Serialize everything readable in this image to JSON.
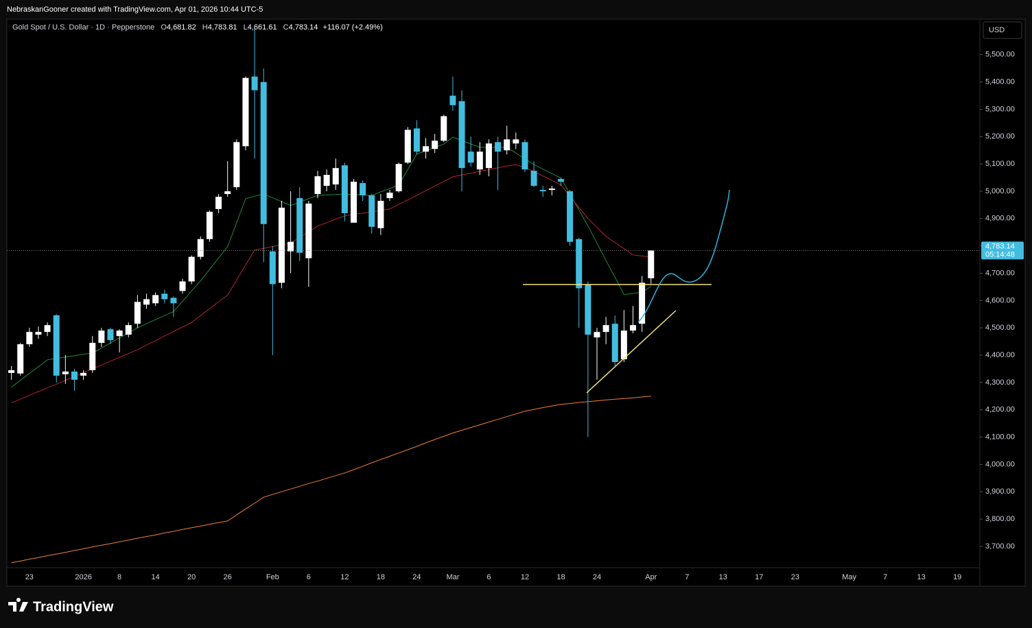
{
  "header": "NebraskanGooner created with TradingView.com, Apr 01, 2026 10:44 UTC-5",
  "footer_logo": "TradingView",
  "chart_data": {
    "type": "candlestick",
    "legend": {
      "symbol": "Gold Spot / U.S. Dollar · 1D · Pepperstone",
      "o_label": "O",
      "o": "4,681.82",
      "h_label": "H",
      "h": "4,783.81",
      "l_label": "L",
      "l": "4,661.61",
      "c_label": "C",
      "c": "4,783.14",
      "change": "+116.07 (+2.49%)"
    },
    "currency": "USD",
    "price_label": "4,783.14",
    "countdown": "05:14:48",
    "categories": [
      null,
      null,
      "23",
      null,
      null,
      null,
      null,
      null,
      "2026",
      null,
      null,
      null,
      "8",
      null,
      null,
      null,
      "14",
      null,
      null,
      null,
      "20",
      null,
      null,
      null,
      "26",
      null,
      null,
      null,
      null,
      "Feb",
      null,
      null,
      null,
      "6",
      null,
      null,
      null,
      "12",
      null,
      null,
      null,
      "18",
      null,
      null,
      null,
      "24",
      null,
      null,
      null,
      "Mar",
      null,
      null,
      null,
      "6",
      null,
      null,
      null,
      "12",
      null,
      null,
      null,
      "18",
      null,
      null,
      null,
      "24",
      null,
      null,
      null,
      null,
      null,
      "Apr",
      null,
      null,
      null,
      "7",
      null,
      null,
      null,
      "13",
      null,
      null,
      null,
      "17",
      null,
      null,
      null,
      "23",
      null,
      null,
      null,
      null,
      null,
      "May",
      null,
      null,
      null,
      "7",
      null,
      null,
      null,
      "13",
      null,
      null,
      null,
      "19",
      null,
      null
    ],
    "open": [
      4335,
      4333,
      4440,
      4475,
      4485,
      4546,
      4330,
      4340,
      4325,
      4345,
      4445,
      4495,
      4470,
      4475,
      4515,
      4585,
      4590,
      4625,
      4610,
      4635,
      4670,
      4760,
      4825,
      4935,
      4990,
      5015,
      5165,
      5420,
      5400,
      4780,
      4665,
      4780,
      4975,
      4755,
      4990,
      5020,
      5025,
      5095,
      4885,
      5030,
      4985,
      4865,
      4975,
      5000,
      5105,
      5230,
      5145,
      5155,
      5185,
      5350,
      5330,
      5145,
      5080,
      5085,
      5180,
      5150,
      5175,
      5180,
      5075,
      5005,
      5005,
      5045,
      5000,
      4825,
      4660,
      4465,
      4485,
      4515,
      4385,
      4490,
      4515,
      4681.82,
      null,
      null,
      null,
      null,
      null,
      null,
      null,
      null,
      null,
      null,
      null,
      null,
      null,
      null,
      null,
      null,
      null,
      null,
      null,
      null,
      null,
      null,
      null,
      null,
      null,
      null,
      null,
      null,
      null,
      null,
      null,
      null,
      null,
      null,
      null,
      null
    ],
    "high": [
      4360,
      4445,
      4500,
      4505,
      4520,
      4550,
      4400,
      4350,
      4345,
      4470,
      4500,
      4500,
      4495,
      4520,
      4620,
      4625,
      4630,
      4640,
      4615,
      4680,
      4765,
      4835,
      4930,
      4990,
      5110,
      5190,
      5420,
      5595,
      5450,
      4800,
      4965,
      5000,
      5015,
      4965,
      5075,
      5080,
      5120,
      5105,
      5045,
      5040,
      4990,
      4990,
      5005,
      5105,
      5235,
      5260,
      5195,
      5210,
      5280,
      5420,
      5370,
      5200,
      5180,
      5190,
      5200,
      5240,
      5215,
      5190,
      5110,
      5020,
      5020,
      5050,
      5005,
      4830,
      4670,
      4500,
      4540,
      4545,
      4565,
      4580,
      4690,
      4783.81,
      null,
      null,
      null,
      null,
      null,
      null,
      null,
      null,
      null,
      null,
      null,
      null,
      null,
      null,
      null,
      null,
      null,
      null,
      null,
      null,
      null,
      null,
      null,
      null,
      null,
      null,
      null,
      null,
      null,
      null,
      null,
      null,
      null,
      null,
      null,
      null
    ],
    "low": [
      4310,
      4325,
      4430,
      4460,
      4470,
      4300,
      4295,
      4270,
      4310,
      4335,
      4430,
      4440,
      4410,
      4465,
      4500,
      4570,
      4580,
      4590,
      4540,
      4625,
      4660,
      4750,
      4815,
      4920,
      4980,
      5005,
      5150,
      5120,
      4740,
      4400,
      4645,
      4700,
      4745,
      4650,
      4975,
      5000,
      5005,
      4890,
      4885,
      4965,
      4845,
      4840,
      4965,
      4995,
      5100,
      5135,
      5120,
      5140,
      5180,
      5295,
      5000,
      5090,
      5060,
      5055,
      5005,
      5135,
      5155,
      5070,
      5015,
      4980,
      4985,
      5020,
      4800,
      4500,
      4100,
      4310,
      4440,
      4360,
      4375,
      4480,
      4485,
      4661.61,
      null,
      null,
      null,
      null,
      null,
      null,
      null,
      null,
      null,
      null,
      null,
      null,
      null,
      null,
      null,
      null,
      null,
      null,
      null,
      null,
      null,
      null,
      null,
      null,
      null,
      null,
      null,
      null,
      null,
      null,
      null,
      null,
      null,
      null,
      null,
      null
    ],
    "close": [
      4345,
      4440,
      4485,
      4485,
      4510,
      4325,
      4340,
      4310,
      4335,
      4445,
      4490,
      4455,
      4490,
      4510,
      4595,
      4605,
      4620,
      4605,
      4590,
      4670,
      4760,
      4825,
      4925,
      4980,
      5000,
      5180,
      5415,
      5370,
      4880,
      4660,
      4940,
      4815,
      4775,
      4955,
      5055,
      5060,
      5085,
      4920,
      5035,
      4985,
      4870,
      4965,
      4995,
      5100,
      5225,
      5145,
      5165,
      5185,
      5275,
      5315,
      5085,
      5105,
      5145,
      5175,
      5145,
      5190,
      5190,
      5080,
      5020,
      5000,
      5010,
      5035,
      4815,
      4645,
      4475,
      4485,
      4510,
      4375,
      4490,
      4510,
      4665,
      4783.14,
      null,
      null,
      null,
      null,
      null,
      null,
      null,
      null,
      null,
      null,
      null,
      null,
      null,
      null,
      null,
      null,
      null,
      null,
      null,
      null,
      null,
      null,
      null,
      null,
      null,
      null,
      null,
      null,
      null,
      null,
      null,
      null,
      null,
      null,
      null,
      null
    ],
    "up_color": "#ffffff",
    "down_color": "#42bde0",
    "lines": [
      {
        "color": "#1f8a3a",
        "values": [
          4283,
          4308,
          4333,
          4358,
          4383,
          4388,
          4393,
          4398,
          4403,
          4408,
          4426,
          4445,
          4463,
          4482,
          4500,
          4515,
          4530,
          4545,
          4560,
          4597,
          4635,
          4672,
          4714,
          4755,
          4797,
          4885,
          4973,
          4982,
          4990,
          4976,
          4962,
          4948,
          4960,
          4973,
          4985,
          4987,
          4988,
          4990,
          4988,
          4987,
          4985,
          4998,
          5010,
          5023,
          5080,
          5136,
          5148,
          5161,
          5173,
          5198,
          5186,
          5173,
          5161,
          5161,
          5161,
          5161,
          5140,
          5119,
          5098,
          5081,
          5065,
          5048,
          4990,
          4932,
          4873,
          4810,
          4747,
          4685,
          4622,
          4626,
          4630,
          4652,
          null,
          null,
          null,
          null,
          null,
          null,
          null,
          null,
          null,
          null,
          null,
          null,
          null,
          null,
          null,
          null,
          null,
          null,
          null,
          null,
          null,
          null,
          null,
          null,
          null,
          null,
          null,
          null,
          null,
          null,
          null,
          null,
          null,
          null,
          null,
          null
        ]
      },
      {
        "color": "#b3262b",
        "values": [
          4225,
          4239,
          4253,
          4267,
          4280,
          4294,
          4308,
          4322,
          4336,
          4350,
          4364,
          4378,
          4392,
          4406,
          4420,
          4437,
          4453,
          4470,
          4487,
          4503,
          4520,
          4545,
          4570,
          4595,
          4620,
          4675,
          4730,
          4785,
          4791,
          4798,
          4804,
          4810,
          4831,
          4852,
          4873,
          4885,
          4898,
          4910,
          4915,
          4920,
          4925,
          4930,
          4935,
          4952,
          4968,
          4985,
          5002,
          5019,
          5036,
          5053,
          5060,
          5066,
          5073,
          5079,
          5086,
          5092,
          5098,
          5086,
          5073,
          5056,
          5040,
          5023,
          4982,
          4941,
          4900,
          4868,
          4835,
          4812,
          4790,
          4767,
          4763,
          4760,
          null,
          null,
          null,
          null,
          null,
          null,
          null,
          null,
          null,
          null,
          null,
          null,
          null,
          null,
          null,
          null,
          null,
          null,
          null,
          null,
          null,
          null,
          null,
          null,
          null,
          null,
          null,
          null,
          null,
          null,
          null,
          null,
          null,
          null,
          null,
          null
        ]
      },
      {
        "color": "#f2803a",
        "values": [
          3640,
          3646,
          3653,
          3659,
          3666,
          3672,
          3678,
          3685,
          3691,
          3698,
          3704,
          3710,
          3717,
          3723,
          3730,
          3736,
          3742,
          3749,
          3755,
          3762,
          3768,
          3774,
          3781,
          3787,
          3793,
          3815,
          3837,
          3858,
          3880,
          3890,
          3900,
          3910,
          3920,
          3930,
          3939,
          3949,
          3959,
          3969,
          3981,
          3993,
          4006,
          4018,
          4030,
          4042,
          4054,
          4066,
          4079,
          4091,
          4103,
          4115,
          4125,
          4135,
          4145,
          4155,
          4165,
          4175,
          4185,
          4195,
          4201,
          4208,
          4214,
          4220,
          4223,
          4227,
          4230,
          4233,
          4236,
          4239,
          4241,
          4244,
          4247,
          4250,
          null,
          null,
          null,
          null,
          null,
          null,
          null,
          null,
          null,
          null,
          null,
          null,
          null,
          null,
          null,
          null,
          null,
          null,
          null,
          null,
          null,
          null,
          null,
          null,
          null,
          null,
          null,
          null,
          null,
          null,
          null,
          null,
          null,
          null,
          null,
          null
        ]
      }
    ],
    "ylim": [
      3622,
      5630
    ],
    "yticks": [
      {
        "value": 3700,
        "label": "3,700.00"
      },
      {
        "value": 3800,
        "label": "3,800.00"
      },
      {
        "value": 3900,
        "label": "3,900.00"
      },
      {
        "value": 4000,
        "label": "4,000.00"
      },
      {
        "value": 4100,
        "label": "4,100.00"
      },
      {
        "value": 4200,
        "label": "4,200.00"
      },
      {
        "value": 4300,
        "label": "4,300.00"
      },
      {
        "value": 4400,
        "label": "4,400.00"
      },
      {
        "value": 4500,
        "label": "4,500.00"
      },
      {
        "value": 4600,
        "label": "4,600.00"
      },
      {
        "value": 4700,
        "label": "4,700.00"
      },
      {
        "value": 4800,
        "label": "4,800.00"
      },
      {
        "value": 4900,
        "label": "4,900.00"
      },
      {
        "value": 5000,
        "label": "5,000.00"
      },
      {
        "value": 5100,
        "label": "5,100.00"
      },
      {
        "value": 5200,
        "label": "5,200.00"
      },
      {
        "value": 5300,
        "label": "5,300.00"
      },
      {
        "value": 5400,
        "label": "5,400.00"
      },
      {
        "value": 5500,
        "label": "5,500.00"
      }
    ],
    "grid": false
  }
}
